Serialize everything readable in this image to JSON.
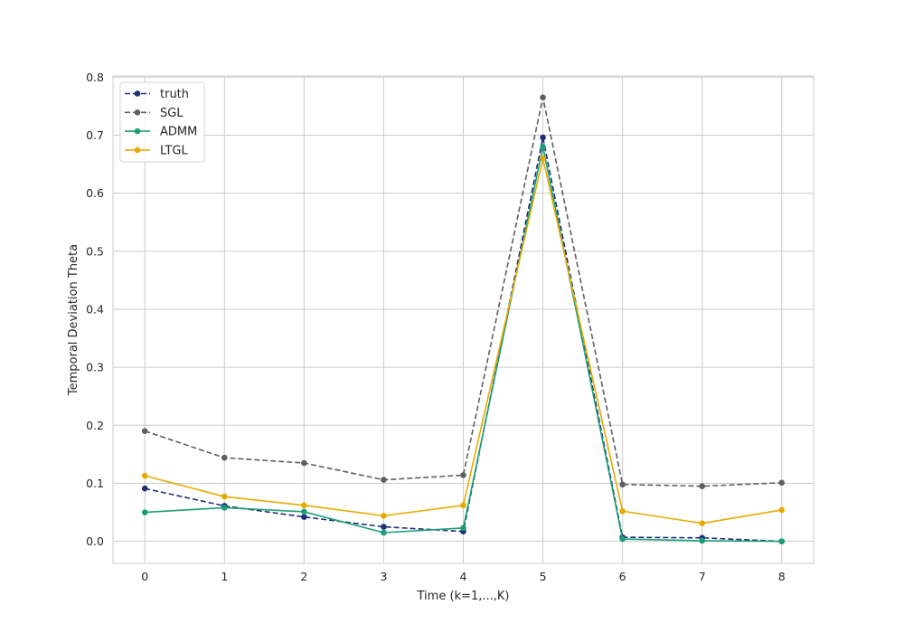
{
  "chart_data": {
    "type": "line",
    "title": "",
    "xlabel": "Time (k=1,...,K)",
    "ylabel": "Temporal Deviation Theta",
    "x": [
      0,
      1,
      2,
      3,
      4,
      5,
      6,
      7,
      8
    ],
    "xlim": [
      -0.4,
      8.4
    ],
    "ylim": [
      -0.038,
      0.802
    ],
    "x_ticks": [
      "0",
      "1",
      "2",
      "3",
      "4",
      "5",
      "6",
      "7",
      "8"
    ],
    "y_ticks": [
      "0.0",
      "0.1",
      "0.2",
      "0.3",
      "0.4",
      "0.5",
      "0.6",
      "0.7",
      "0.8"
    ],
    "y_tick_values": [
      0.0,
      0.1,
      0.2,
      0.3,
      0.4,
      0.5,
      0.6,
      0.7,
      0.8
    ],
    "grid": true,
    "legend_position": "top-left",
    "series": [
      {
        "name": "truth",
        "color": "#1f2f7a",
        "style": "dashed",
        "values": [
          0.091,
          0.061,
          0.042,
          0.025,
          0.017,
          0.696,
          0.007,
          0.006,
          0.0
        ]
      },
      {
        "name": "SGL",
        "color": "#5f5f5f",
        "style": "dashed",
        "values": [
          0.19,
          0.144,
          0.135,
          0.106,
          0.114,
          0.765,
          0.098,
          0.095,
          0.101
        ]
      },
      {
        "name": "ADMM",
        "color": "#1b9e77",
        "style": "solid",
        "values": [
          0.05,
          0.058,
          0.051,
          0.015,
          0.023,
          0.68,
          0.004,
          0.001,
          0.0
        ]
      },
      {
        "name": "LTGL",
        "color": "#e6ab02",
        "style": "solid",
        "values": [
          0.113,
          0.077,
          0.062,
          0.044,
          0.062,
          0.66,
          0.052,
          0.031,
          0.054
        ]
      }
    ]
  }
}
